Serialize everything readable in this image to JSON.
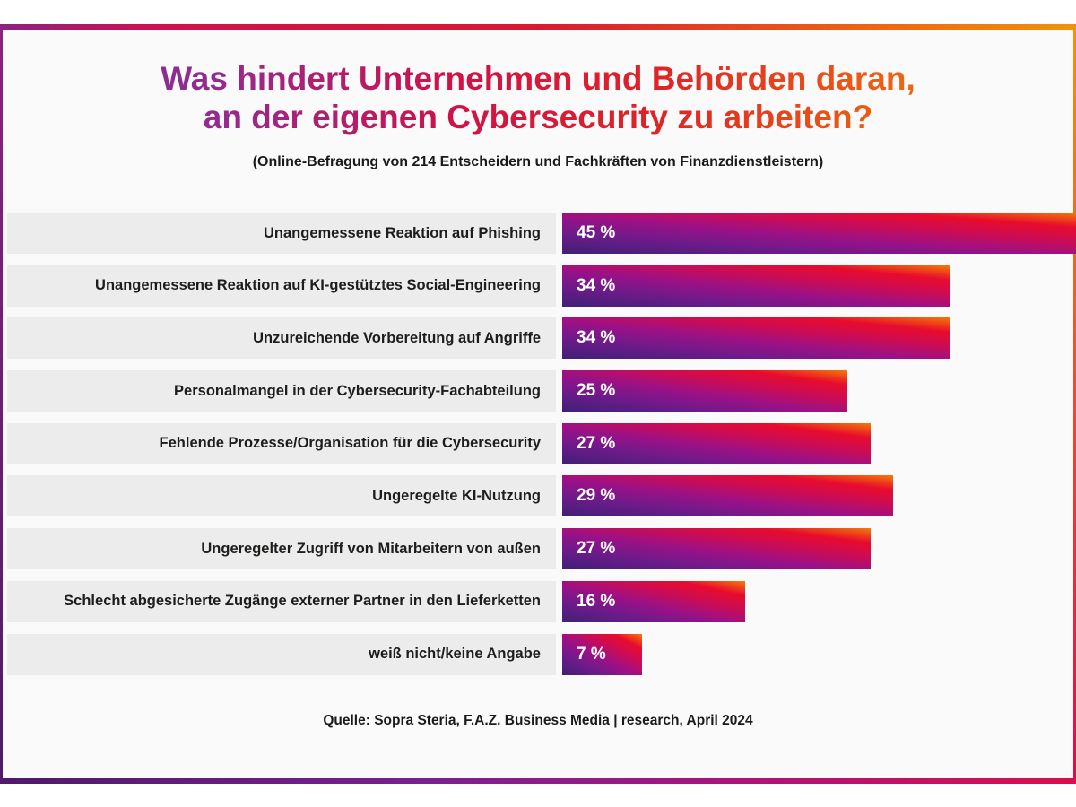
{
  "title": {
    "line1": "Was hindert Unternehmen und Behörden daran,",
    "line2": "an der eigenen Cybersecurity zu arbeiten?"
  },
  "subtitle": "(Online-Befragung von 214 Entscheidern und Fachkräften von Finanzdienstleistern)",
  "source": "Quelle: Sopra Steria, F.A.Z. Business Media | research, April 2024",
  "chart_data": {
    "type": "bar",
    "orientation": "horizontal",
    "title": "Was hindert Unternehmen und Behörden daran, an der eigenen Cybersecurity zu arbeiten?",
    "subtitle": "(Online-Befragung von 214 Entscheidern und Fachkräften von Finanzdienstleistern)",
    "categories": [
      "Unangemessene Reaktion auf Phishing",
      "Unangemessene Reaktion auf KI-gestütztes Social-Engineering",
      "Unzureichende Vorbereitung auf Angriffe",
      "Personalmangel in der Cybersecurity-Fachabteilung",
      "Fehlende Prozesse/Organisation für die Cybersecurity",
      "Ungeregelte KI-Nutzung",
      "Ungeregelter Zugriff von Mitarbeitern von außen",
      "Schlecht abgesicherte Zugänge externer Partner in den Lieferketten",
      "weiß nicht/keine Angabe"
    ],
    "values": [
      45,
      34,
      34,
      25,
      27,
      29,
      27,
      16,
      7
    ],
    "value_labels": [
      "45 %",
      "34 %",
      "34 %",
      "25 %",
      "27 %",
      "29 %",
      "27 %",
      "16 %",
      "7 %"
    ],
    "unit": "%",
    "xlim": [
      0,
      45
    ],
    "grid": false,
    "legend": "none",
    "bar_gradient": [
      "#3f2076",
      "#6d1b8a",
      "#9a1187",
      "#cc0c55",
      "#e80b2c",
      "#f57a08"
    ],
    "label_background": "#ececec",
    "source": "Quelle: Sopra Steria, F.A.Z. Business Media | research, April 2024"
  },
  "colors": {
    "page_background": "#ffffff",
    "frame_background": "#fafafa",
    "title_gradient": [
      "#6a3795",
      "#cf1148",
      "#f28c07"
    ],
    "border_top_gradient": [
      "#8c2180",
      "#da1931",
      "#f1920b"
    ],
    "border_bottom_gradient": [
      "#4f1a68",
      "#ab1579",
      "#d80e4c"
    ],
    "bar_text": "#ffffff",
    "label_text": "#1d1d1b"
  }
}
